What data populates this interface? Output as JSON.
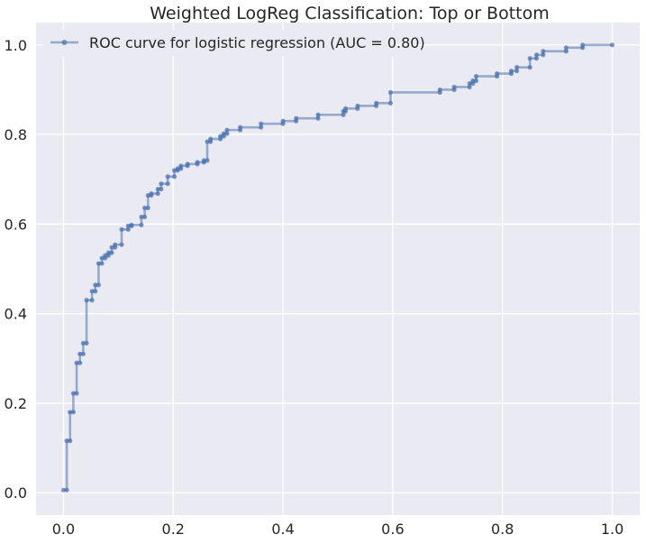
{
  "chart_data": {
    "type": "line",
    "title": "Weighted LogReg Classification: Top or Bottom",
    "xlabel": "",
    "ylabel": "",
    "xlim": [
      -0.05,
      1.05
    ],
    "ylim": [
      -0.05,
      1.05
    ],
    "x_ticks": [
      0.0,
      0.2,
      0.4,
      0.6,
      0.8,
      1.0
    ],
    "y_ticks": [
      0.0,
      0.2,
      0.4,
      0.6,
      0.8,
      1.0
    ],
    "x_tick_labels": [
      "0.0",
      "0.2",
      "0.4",
      "0.6",
      "0.8",
      "1.0"
    ],
    "y_tick_labels": [
      "0.0",
      "0.2",
      "0.4",
      "0.6",
      "0.8",
      "1.0"
    ],
    "grid": true,
    "legend_position": "top-left",
    "colors": {
      "background": "#eaeaf2",
      "grid": "#ffffff",
      "line": "#4c72b0"
    },
    "series": [
      {
        "name": "ROC curve for logistic regression (AUC = 0.80)",
        "x": [
          0.0,
          0.006,
          0.006,
          0.012,
          0.012,
          0.018,
          0.018,
          0.024,
          0.024,
          0.03,
          0.03,
          0.036,
          0.036,
          0.042,
          0.042,
          0.052,
          0.052,
          0.058,
          0.058,
          0.064,
          0.064,
          0.07,
          0.07,
          0.076,
          0.076,
          0.082,
          0.082,
          0.088,
          0.088,
          0.094,
          0.094,
          0.106,
          0.106,
          0.118,
          0.118,
          0.124,
          0.124,
          0.142,
          0.142,
          0.148,
          0.148,
          0.154,
          0.154,
          0.16,
          0.16,
          0.172,
          0.172,
          0.178,
          0.178,
          0.19,
          0.19,
          0.202,
          0.202,
          0.208,
          0.208,
          0.214,
          0.214,
          0.226,
          0.226,
          0.244,
          0.244,
          0.256,
          0.256,
          0.262,
          0.262,
          0.268,
          0.268,
          0.286,
          0.286,
          0.292,
          0.292,
          0.298,
          0.298,
          0.322,
          0.322,
          0.36,
          0.36,
          0.4,
          0.4,
          0.424,
          0.424,
          0.464,
          0.464,
          0.51,
          0.51,
          0.514,
          0.514,
          0.536,
          0.536,
          0.57,
          0.57,
          0.596,
          0.596,
          0.686,
          0.686,
          0.712,
          0.712,
          0.74,
          0.74,
          0.746,
          0.746,
          0.752,
          0.752,
          0.79,
          0.79,
          0.816,
          0.816,
          0.826,
          0.826,
          0.85,
          0.85,
          0.862,
          0.862,
          0.874,
          0.874,
          0.916,
          0.916,
          0.946,
          0.946,
          1.0
        ],
        "y": [
          0.006,
          0.006,
          0.116,
          0.116,
          0.18,
          0.18,
          0.222,
          0.222,
          0.29,
          0.29,
          0.31,
          0.31,
          0.334,
          0.334,
          0.43,
          0.43,
          0.45,
          0.45,
          0.464,
          0.464,
          0.512,
          0.512,
          0.524,
          0.524,
          0.53,
          0.53,
          0.536,
          0.536,
          0.548,
          0.548,
          0.554,
          0.554,
          0.588,
          0.588,
          0.596,
          0.596,
          0.598,
          0.598,
          0.616,
          0.616,
          0.636,
          0.636,
          0.664,
          0.664,
          0.668,
          0.668,
          0.678,
          0.678,
          0.69,
          0.69,
          0.706,
          0.706,
          0.72,
          0.72,
          0.724,
          0.724,
          0.73,
          0.73,
          0.734,
          0.734,
          0.738,
          0.738,
          0.742,
          0.742,
          0.784,
          0.784,
          0.79,
          0.79,
          0.796,
          0.796,
          0.802,
          0.802,
          0.81,
          0.81,
          0.816,
          0.816,
          0.824,
          0.824,
          0.83,
          0.83,
          0.836,
          0.836,
          0.844,
          0.844,
          0.852,
          0.852,
          0.858,
          0.858,
          0.864,
          0.864,
          0.87,
          0.87,
          0.894,
          0.894,
          0.9,
          0.9,
          0.906,
          0.906,
          0.914,
          0.914,
          0.92,
          0.92,
          0.93,
          0.93,
          0.936,
          0.936,
          0.942,
          0.942,
          0.95,
          0.95,
          0.97,
          0.97,
          0.978,
          0.978,
          0.986,
          0.986,
          0.994,
          0.994,
          1.0,
          1.0
        ]
      }
    ]
  }
}
